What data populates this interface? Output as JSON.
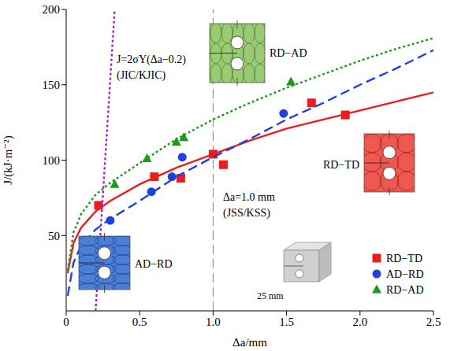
{
  "chart_data": {
    "type": "scatter",
    "x_label": "Δa/mm",
    "y_label": "J/(kJ·m⁻²)",
    "xlim": [
      0,
      2.5
    ],
    "ylim": [
      0,
      200
    ],
    "xticks": [
      0,
      0.5,
      {
        "value": 1,
        "label": "1.0"
      },
      1.5,
      {
        "value": 2,
        "label": "2.0"
      },
      2.5
    ],
    "yticks": [
      50,
      100,
      150,
      200
    ],
    "legend": "lower right",
    "series": [
      {
        "name": "RD−TD",
        "type": "scatter",
        "color": "#ee1c1c",
        "marker": "square",
        "x": [
          0.22,
          0.6,
          0.78,
          1.0,
          1.07,
          1.67,
          1.9
        ],
        "values": [
          70,
          89,
          88,
          104,
          97,
          138,
          130
        ]
      },
      {
        "name": "AD−RD",
        "type": "scatter",
        "color": "#1f3fe0",
        "marker": "circle",
        "x": [
          0.3,
          0.58,
          0.72,
          0.79,
          1.48
        ],
        "values": [
          60,
          79,
          89,
          102,
          131
        ]
      },
      {
        "name": "RD−AD",
        "type": "scatter",
        "color": "#1a9a1a",
        "marker": "triangle",
        "x": [
          0.33,
          0.55,
          0.75,
          0.8,
          1.53
        ],
        "values": [
          84,
          101,
          112,
          115,
          152
        ]
      },
      {
        "type": "line",
        "color": "#ee1c1c",
        "line_style": "solid",
        "x": [
          0.01,
          0.05,
          0.1,
          0.2,
          0.3,
          0.5,
          0.75,
          1.0,
          1.25,
          1.5,
          1.75,
          2.0,
          2.25,
          2.5
        ],
        "values": [
          25,
          45,
          55,
          66,
          73,
          84,
          95,
          104,
          113,
          121,
          127,
          133,
          139,
          145
        ]
      },
      {
        "type": "line",
        "color": "#1f3fe0",
        "line_style": "dashed",
        "x": [
          0.01,
          0.05,
          0.1,
          0.2,
          0.3,
          0.5,
          0.75,
          1.0,
          1.25,
          1.5,
          1.75,
          2.0,
          2.25,
          2.5
        ],
        "values": [
          10,
          32,
          43,
          54,
          61,
          73,
          89,
          102,
          114,
          127,
          138,
          150,
          161,
          173
        ]
      },
      {
        "type": "line",
        "color": "#1a9a1a",
        "line_style": "dotted",
        "x": [
          0.01,
          0.05,
          0.1,
          0.2,
          0.3,
          0.5,
          0.75,
          1.0,
          1.25,
          1.5,
          1.75,
          2.0,
          2.25,
          2.5
        ],
        "values": [
          27,
          52,
          64,
          77,
          85,
          98,
          114,
          127,
          138,
          148,
          157,
          166,
          174,
          181
        ]
      },
      {
        "type": "line",
        "color": "#a020c0",
        "line_style": "dotted",
        "x": [
          0.2,
          0.33
        ],
        "values": [
          0,
          200
        ]
      }
    ],
    "reference_lines": [
      {
        "x": 1,
        "color": "#808080",
        "line_style": "dashed"
      }
    ],
    "annotations": [
      {
        "text": "J=2σY(Δa−0.2)"
      },
      {
        "text": "(JIC/KJIC)"
      },
      {
        "text": "Δa=1.0 mm"
      },
      {
        "text": "(JSS/KSS)"
      },
      {
        "text": "25 mm"
      }
    ],
    "insets": [
      {
        "label": "RD−AD",
        "color": "#9acb72"
      },
      {
        "label": "AD−RD",
        "color": "#4a7fd8"
      },
      {
        "label": "RD−TD",
        "color": "#f0584f"
      }
    ]
  }
}
